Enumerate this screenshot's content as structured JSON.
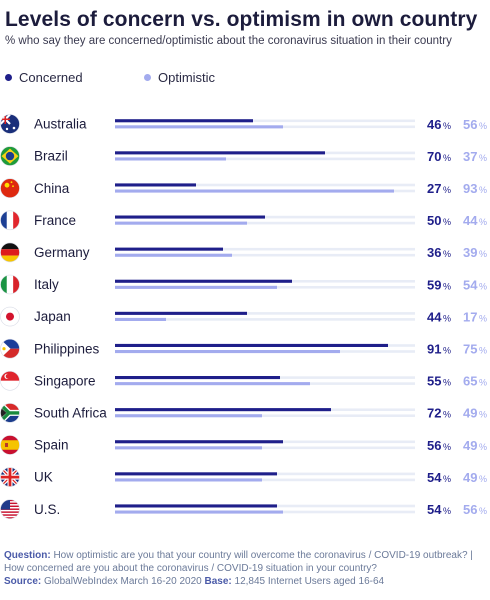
{
  "title": "Levels of concern vs. optimism in own country",
  "subtitle": "% who say they are concerned/optimistic about the coronavirus situation in their country",
  "colors": {
    "concerned": "#1f1f8a",
    "optimistic": "#a3abee",
    "track": "#e8ecf6",
    "text_dark": "#1c1c3c",
    "footer": "#6b7a99",
    "footer_label": "#4a5aa8"
  },
  "legend": [
    {
      "label": "Concerned",
      "color": "#1f1f8a"
    },
    {
      "label": "Optimistic",
      "color": "#a3abee"
    }
  ],
  "percent_sign": "%",
  "chart_data": {
    "type": "bar",
    "orientation": "horizontal",
    "categories": [
      "Australia",
      "Brazil",
      "China",
      "France",
      "Germany",
      "Italy",
      "Japan",
      "Philippines",
      "Singapore",
      "South Africa",
      "Spain",
      "UK",
      "U.S."
    ],
    "flags": [
      "australia-flag-icon",
      "brazil-flag-icon",
      "china-flag-icon",
      "france-flag-icon",
      "germany-flag-icon",
      "italy-flag-icon",
      "japan-flag-icon",
      "philippines-flag-icon",
      "singapore-flag-icon",
      "south-africa-flag-icon",
      "spain-flag-icon",
      "uk-flag-icon",
      "us-flag-icon"
    ],
    "series": [
      {
        "name": "Concerned",
        "values": [
          46,
          70,
          27,
          50,
          36,
          59,
          44,
          91,
          55,
          72,
          56,
          54,
          54
        ]
      },
      {
        "name": "Optimistic",
        "values": [
          56,
          37,
          93,
          44,
          39,
          54,
          17,
          75,
          65,
          49,
          49,
          49,
          56
        ]
      }
    ],
    "xlim": [
      0,
      100
    ],
    "legend_position": "top-left",
    "grid": false
  },
  "footer": {
    "question_label": "Question:",
    "question_text": "How optimistic are you that your country will overcome the coronavirus / COVID-19 outbreak? | How concerned are you about the coronavirus / COVID-19 situation in your country?",
    "source_label": "Source:",
    "source_text": "GlobalWebIndex March 16-20 2020",
    "base_label": "Base:",
    "base_text": "12,845 Internet Users aged 16-64"
  }
}
